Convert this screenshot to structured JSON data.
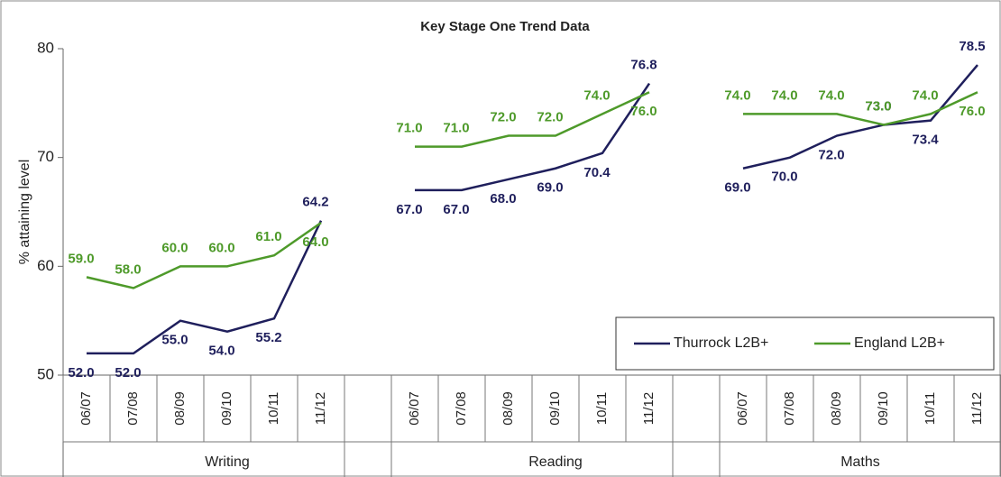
{
  "chart_data": {
    "type": "line",
    "title": "Key Stage One Trend Data",
    "y_label": "% attaining level",
    "categories": [
      "06/07",
      "07/08",
      "08/09",
      "09/10",
      "10/11",
      "11/12",
      null,
      "06/07",
      "07/08",
      "08/09",
      "09/10",
      "10/11",
      "11/12",
      null,
      "06/07",
      "07/08",
      "08/09",
      "09/10",
      "10/11",
      "11/12"
    ],
    "groups": [
      "Writing",
      "Reading",
      "Maths"
    ],
    "series": [
      {
        "name": "Thurrock L2B+",
        "color": "#1f1f5c",
        "values": [
          52,
          52,
          55,
          54,
          55.2,
          64.2,
          null,
          67,
          67,
          68,
          69,
          70.4,
          76.8,
          null,
          69,
          70,
          72,
          73,
          73.4,
          78.5
        ],
        "value_labels": [
          "52.0",
          "52.0",
          "55.0",
          "54.0",
          "55.2",
          "64.2",
          null,
          "67.0",
          "67.0",
          "68.0",
          "69.0",
          "70.4",
          "76.8",
          null,
          "69.0",
          "70.0",
          "72.0",
          "73.0",
          "73.4",
          "78.5"
        ]
      },
      {
        "name": "England L2B+",
        "color": "#4e9a2a",
        "values": [
          59,
          58,
          60,
          60,
          61,
          64,
          null,
          71,
          71,
          72,
          72,
          74,
          76,
          null,
          74,
          74,
          74,
          73,
          74,
          76
        ],
        "value_labels": [
          "59.0",
          "58.0",
          "60.0",
          "60.0",
          "61.0",
          "64.0",
          null,
          "71.0",
          "71.0",
          "72.0",
          "72.0",
          "74.0",
          "76.0",
          null,
          "74.0",
          "74.0",
          "74.0",
          "73.0",
          "74.0",
          "76.0"
        ]
      }
    ],
    "ylim": [
      50,
      80
    ],
    "yticks": [
      50,
      60,
      70,
      80
    ],
    "grid": false,
    "legend": "lower right"
  }
}
